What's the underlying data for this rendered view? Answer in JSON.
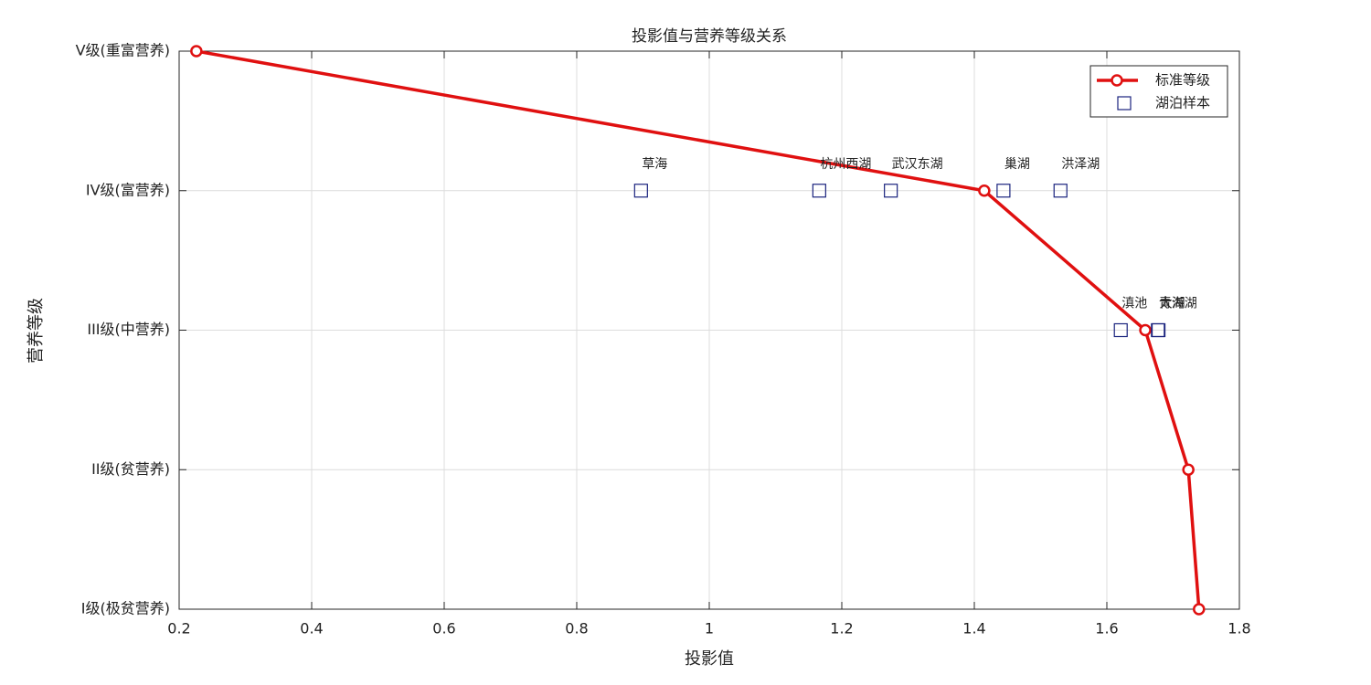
{
  "chart_data": {
    "type": "line",
    "title": "投影值与营养等级关系",
    "xlabel": "投影值",
    "ylabel": "营养等级",
    "xlim": [
      0.2,
      1.8
    ],
    "xticks": [
      0.2,
      0.4,
      0.6,
      0.8,
      1,
      1.2,
      1.4,
      1.6,
      1.8
    ],
    "ylim": [
      1,
      5
    ],
    "yticks": [
      {
        "value": 1,
        "label": "I级(极贫营养)"
      },
      {
        "value": 2,
        "label": "II级(贫营养)"
      },
      {
        "value": 3,
        "label": "III级(中营养)"
      },
      {
        "value": 4,
        "label": "IV级(富营养)"
      },
      {
        "value": 5,
        "label": "V级(重富营养)"
      }
    ],
    "grid": true,
    "legend": "top-right",
    "series": [
      {
        "name": "标准等级",
        "color": "#e01010",
        "marker": "circle",
        "x": [
          0.226,
          1.415,
          1.658,
          1.723,
          1.739
        ],
        "values": [
          5,
          4,
          3,
          2,
          1
        ]
      },
      {
        "name": "湖泊样本",
        "color": "#1a237e",
        "marker": "square",
        "x": [
          0.897,
          1.166,
          1.274,
          1.444,
          1.53,
          1.621,
          1.677,
          1.678
        ],
        "values": [
          4,
          4,
          4,
          4,
          4,
          3,
          3,
          3
        ],
        "labels": [
          "草海",
          "杭州西湖",
          "武汉东湖",
          "巢湖",
          "洪泽湖",
          "滇池",
          "青海湖",
          "太湖"
        ]
      }
    ]
  }
}
